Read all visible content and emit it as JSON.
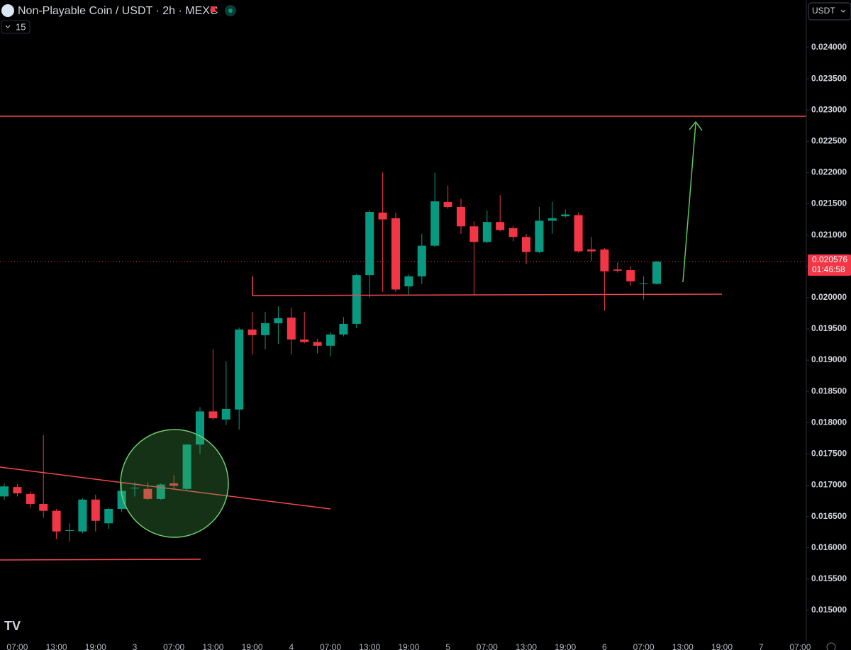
{
  "header": {
    "title": "Non-Playable Coin / USDT · 2h · MEXC",
    "indicator_count": "15",
    "currency": "USDT",
    "logo": "TV"
  },
  "chart_data": {
    "type": "candlestick",
    "open": [
      0.01682,
      0.01697,
      0.01686,
      0.0167,
      0.01659,
      0.01627,
      0.01626,
      0.01677,
      0.01639,
      0.01662,
      0.01695,
      0.01694,
      0.01678,
      0.01703,
      0.01694,
      0.01765,
      0.01818,
      0.01805,
      0.01821,
      0.01949,
      0.0194,
      0.01959,
      0.01968,
      0.01933,
      0.01929,
      0.01923,
      0.01941,
      0.01958,
      0.02036,
      0.02136,
      0.02127,
      0.02018,
      0.02034,
      0.02083,
      0.02153,
      0.02145,
      0.02114,
      0.02089,
      0.02121,
      0.02111,
      0.02097,
      0.02073,
      0.02123,
      0.0213,
      0.02132,
      0.02077,
      0.02077,
      0.02045,
      0.02044,
      0.02022,
      0.02022
    ],
    "high": [
      0.01703,
      0.01702,
      0.0169,
      0.0178,
      0.01662,
      0.01639,
      0.01679,
      0.01685,
      0.01664,
      0.01703,
      0.01705,
      0.01705,
      0.01703,
      0.01716,
      0.01766,
      0.01825,
      0.01917,
      0.01898,
      0.01952,
      0.01977,
      0.01977,
      0.01986,
      0.01984,
      0.01977,
      0.01934,
      0.01945,
      0.01969,
      0.02038,
      0.0214,
      0.022,
      0.02136,
      0.02037,
      0.02102,
      0.022,
      0.02179,
      0.02158,
      0.02122,
      0.02139,
      0.02164,
      0.02115,
      0.02102,
      0.02145,
      0.02153,
      0.02141,
      0.02136,
      0.02097,
      0.02079,
      0.02056,
      0.0205,
      0.02034,
      0.02059
    ],
    "low": [
      0.01676,
      0.01682,
      0.01664,
      0.01648,
      0.01614,
      0.0161,
      0.01623,
      0.01626,
      0.0163,
      0.01657,
      0.01682,
      0.01676,
      0.01676,
      0.01694,
      0.01691,
      0.0175,
      0.01805,
      0.01796,
      0.01789,
      0.01909,
      0.01917,
      0.01926,
      0.01909,
      0.01927,
      0.01911,
      0.01906,
      0.01938,
      0.01951,
      0.02,
      0.02009,
      0.02009,
      0.02005,
      0.02022,
      0.02081,
      0.02142,
      0.02102,
      0.02005,
      0.02087,
      0.02106,
      0.0209,
      0.02054,
      0.02071,
      0.02102,
      0.02128,
      0.02072,
      0.02059,
      0.01979,
      0.0204,
      0.02019,
      0.01997,
      0.02021
    ],
    "close": [
      0.01698,
      0.01687,
      0.0167,
      0.01659,
      0.01626,
      0.01628,
      0.01677,
      0.01643,
      0.01662,
      0.01691,
      0.01696,
      0.01678,
      0.01701,
      0.01699,
      0.01765,
      0.01818,
      0.01807,
      0.01822,
      0.01949,
      0.0194,
      0.01959,
      0.01967,
      0.01933,
      0.01929,
      0.01923,
      0.01941,
      0.01958,
      0.02036,
      0.02137,
      0.02125,
      0.02013,
      0.02034,
      0.02083,
      0.02154,
      0.02145,
      0.02114,
      0.02089,
      0.02121,
      0.02108,
      0.02097,
      0.02073,
      0.02123,
      0.02127,
      0.02133,
      0.02074,
      0.02074,
      0.02042,
      0.02043,
      0.02026,
      0.02023,
      0.020576
    ],
    "x_labels": [
      "07:00",
      "13:00",
      "19:00",
      "3",
      "07:00",
      "13:00",
      "19:00",
      "4",
      "07:00",
      "13:00",
      "19:00",
      "5",
      "07:00",
      "13:00",
      "19:00",
      "6",
      "07:00",
      "13:00",
      "19:00",
      "7",
      "07:00"
    ],
    "ylim": [
      0.0145,
      0.02476
    ],
    "yticks": [
      {
        "value": 0.015,
        "label": "0.015000"
      },
      {
        "value": 0.0155,
        "label": "0.015500"
      },
      {
        "value": 0.016,
        "label": "0.016000"
      },
      {
        "value": 0.0165,
        "label": "0.016500"
      },
      {
        "value": 0.017,
        "label": "0.017000"
      },
      {
        "value": 0.0175,
        "label": "0.017500"
      },
      {
        "value": 0.018,
        "label": "0.018000"
      },
      {
        "value": 0.0185,
        "label": "0.018500"
      },
      {
        "value": 0.019,
        "label": "0.019000"
      },
      {
        "value": 0.0195,
        "label": "0.019500"
      },
      {
        "value": 0.02,
        "label": "0.020000"
      },
      {
        "value": 0.0205,
        "label": "0.020500"
      },
      {
        "value": 0.021,
        "label": "0.021000"
      },
      {
        "value": 0.0215,
        "label": "0.021500"
      },
      {
        "value": 0.022,
        "label": "0.022000"
      },
      {
        "value": 0.0225,
        "label": "0.022500"
      },
      {
        "value": 0.023,
        "label": "0.023000"
      },
      {
        "value": 0.0235,
        "label": "0.023500"
      },
      {
        "value": 0.024,
        "label": "0.024000"
      }
    ],
    "last_price": 0.020576,
    "countdown": "01:46:58",
    "up_color": "#089981",
    "down_color": "#f23645"
  }
}
